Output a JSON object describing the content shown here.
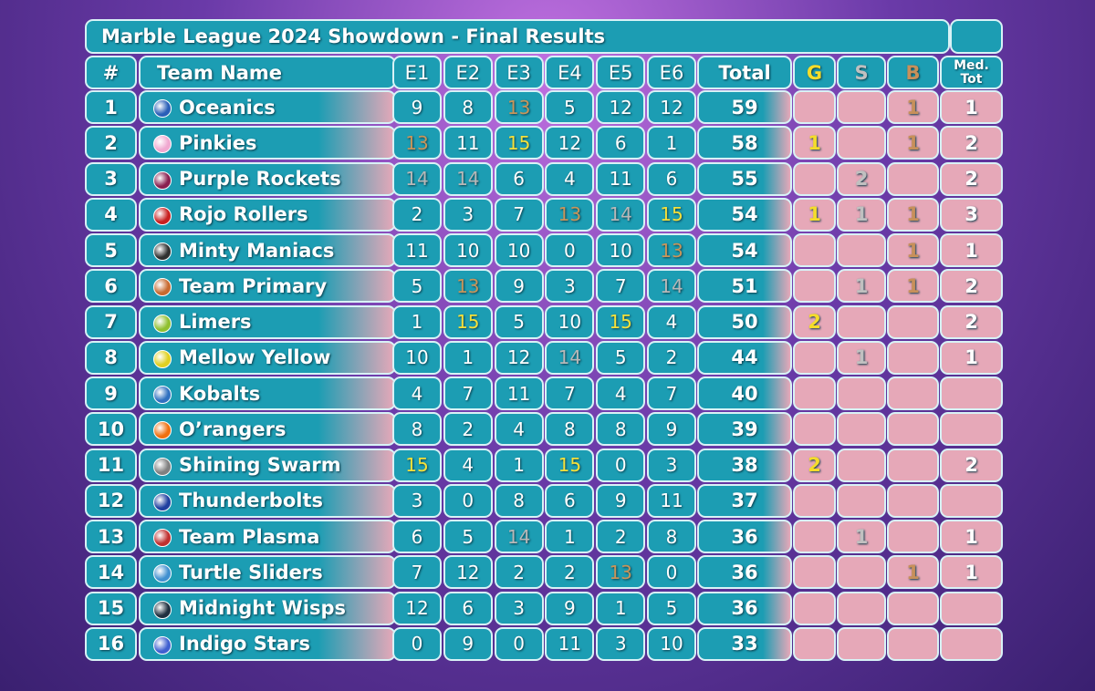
{
  "header": {
    "title": "Marble League 2024 Showdown - Final Results"
  },
  "table": {
    "columns": [
      "#",
      "Team Name",
      "E1",
      "E2",
      "E3",
      "E4",
      "E5",
      "E6",
      "Total",
      "G",
      "S",
      "B",
      "Med. Tot"
    ],
    "rows": [
      [
        1,
        "Oceanics",
        9,
        8,
        13,
        5,
        12,
        12,
        59,
        null,
        null,
        1,
        1
      ],
      [
        2,
        "Pinkies",
        13,
        11,
        15,
        12,
        6,
        1,
        58,
        1,
        null,
        1,
        2
      ],
      [
        3,
        "Purple Rockets",
        14,
        14,
        6,
        4,
        11,
        6,
        55,
        null,
        2,
        null,
        2
      ],
      [
        4,
        "Rojo Rollers",
        2,
        3,
        7,
        13,
        14,
        15,
        54,
        1,
        1,
        1,
        3
      ],
      [
        5,
        "Minty Maniacs",
        11,
        10,
        10,
        0,
        10,
        13,
        54,
        null,
        null,
        1,
        1
      ],
      [
        6,
        "Team Primary",
        5,
        13,
        9,
        3,
        7,
        14,
        51,
        null,
        1,
        1,
        2
      ],
      [
        7,
        "Limers",
        1,
        15,
        5,
        10,
        15,
        4,
        50,
        2,
        null,
        null,
        2
      ],
      [
        8,
        "Mellow Yellow",
        10,
        1,
        12,
        14,
        5,
        2,
        44,
        null,
        1,
        null,
        1
      ],
      [
        9,
        "Kobalts",
        4,
        7,
        11,
        7,
        4,
        7,
        40,
        null,
        null,
        null,
        null
      ],
      [
        10,
        "O’rangers",
        8,
        2,
        4,
        8,
        8,
        9,
        39,
        null,
        null,
        null,
        null
      ],
      [
        11,
        "Shining Swarm",
        15,
        4,
        1,
        15,
        0,
        3,
        38,
        2,
        null,
        null,
        2
      ],
      [
        12,
        "Thunderbolts",
        3,
        0,
        8,
        6,
        9,
        11,
        37,
        null,
        null,
        null,
        null
      ],
      [
        13,
        "Team Plasma",
        6,
        5,
        14,
        1,
        2,
        8,
        36,
        null,
        1,
        null,
        1
      ],
      [
        14,
        "Turtle Sliders",
        7,
        12,
        2,
        2,
        13,
        0,
        36,
        null,
        null,
        1,
        1
      ],
      [
        15,
        "Midnight Wisps",
        12,
        6,
        3,
        9,
        1,
        5,
        36,
        null,
        null,
        null,
        null
      ],
      [
        16,
        "Indigo Stars",
        0,
        9,
        0,
        11,
        3,
        10,
        33,
        null,
        null,
        null,
        null
      ]
    ]
  }
}
